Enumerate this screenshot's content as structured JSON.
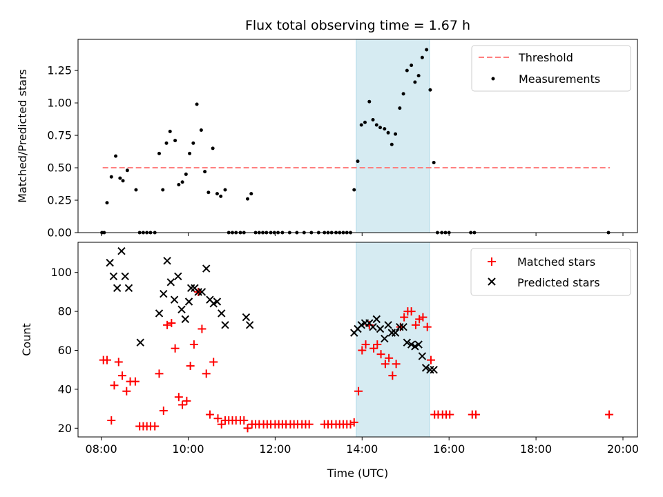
{
  "chart_data": [
    {
      "type": "scatter",
      "title": "Flux total observing time = 1.67 h",
      "xlabel": "",
      "ylabel": "Matched/Predicted stars",
      "xlim": [
        "07:28",
        "20:20"
      ],
      "ylim": [
        0,
        1.49
      ],
      "yticks": [
        0.0,
        0.25,
        0.5,
        0.75,
        1.0,
        1.25
      ],
      "ytick_labels": [
        "0.00",
        "0.25",
        "0.50",
        "0.75",
        "1.00",
        "1.25"
      ],
      "xticks": [
        "08:00",
        "10:00",
        "12:00",
        "14:00",
        "16:00",
        "18:00",
        "20:00"
      ],
      "show_xtick_labels": false,
      "grid": false,
      "legend_position": "top-right",
      "highlight_span": {
        "x0": "13:52",
        "x1": "15:33",
        "color": "#add8e6"
      },
      "threshold": {
        "name": "Threshold",
        "value": 0.5,
        "x0": "08:02",
        "x1": "19:42",
        "color": "#ff7f7f"
      },
      "series": [
        {
          "name": "Measurements",
          "color": "#000000",
          "marker": "dot",
          "points": [
            [
              "08:01",
              0
            ],
            [
              "08:04",
              0
            ],
            [
              "08:08",
              0.23
            ],
            [
              "08:14",
              0.43
            ],
            [
              "08:20",
              0.59
            ],
            [
              "08:26",
              0.42
            ],
            [
              "08:30",
              0.4
            ],
            [
              "08:36",
              0.48
            ],
            [
              "08:48",
              0.33
            ],
            [
              "08:53",
              0
            ],
            [
              "08:58",
              0
            ],
            [
              "09:03",
              0
            ],
            [
              "09:08",
              0
            ],
            [
              "09:14",
              0
            ],
            [
              "09:20",
              0.61
            ],
            [
              "09:25",
              0.33
            ],
            [
              "09:30",
              0.69
            ],
            [
              "09:35",
              0.78
            ],
            [
              "09:42",
              0.71
            ],
            [
              "09:47",
              0.37
            ],
            [
              "09:52",
              0.39
            ],
            [
              "09:57",
              0.45
            ],
            [
              "10:02",
              0.61
            ],
            [
              "10:07",
              0.69
            ],
            [
              "10:12",
              0.99
            ],
            [
              "10:18",
              0.79
            ],
            [
              "10:23",
              0.47
            ],
            [
              "10:28",
              0.31
            ],
            [
              "10:34",
              0.65
            ],
            [
              "10:40",
              0.3
            ],
            [
              "10:45",
              0.28
            ],
            [
              "10:51",
              0.33
            ],
            [
              "10:56",
              0
            ],
            [
              "11:01",
              0
            ],
            [
              "11:06",
              0
            ],
            [
              "11:12",
              0
            ],
            [
              "11:17",
              0
            ],
            [
              "11:22",
              0.26
            ],
            [
              "11:27",
              0.3
            ],
            [
              "11:33",
              0
            ],
            [
              "11:38",
              0
            ],
            [
              "11:43",
              0
            ],
            [
              "11:48",
              0
            ],
            [
              "11:54",
              0
            ],
            [
              "11:59",
              0
            ],
            [
              "12:04",
              0
            ],
            [
              "12:10",
              0
            ],
            [
              "12:20",
              0
            ],
            [
              "12:30",
              0
            ],
            [
              "12:40",
              0
            ],
            [
              "12:50",
              0
            ],
            [
              "13:00",
              0
            ],
            [
              "13:08",
              0
            ],
            [
              "13:13",
              0
            ],
            [
              "13:18",
              0
            ],
            [
              "13:24",
              0
            ],
            [
              "13:29",
              0
            ],
            [
              "13:34",
              0
            ],
            [
              "13:39",
              0
            ],
            [
              "13:44",
              0
            ],
            [
              "13:49",
              0.33
            ],
            [
              "13:54",
              0.55
            ],
            [
              "13:59",
              0.83
            ],
            [
              "14:04",
              0.85
            ],
            [
              "14:10",
              1.01
            ],
            [
              "14:15",
              0.87
            ],
            [
              "14:20",
              0.83
            ],
            [
              "14:25",
              0.81
            ],
            [
              "14:31",
              0.8
            ],
            [
              "14:36",
              0.77
            ],
            [
              "14:41",
              0.68
            ],
            [
              "14:46",
              0.76
            ],
            [
              "14:52",
              0.96
            ],
            [
              "14:57",
              1.07
            ],
            [
              "15:02",
              1.25
            ],
            [
              "15:08",
              1.29
            ],
            [
              "15:13",
              1.16
            ],
            [
              "15:18",
              1.21
            ],
            [
              "15:23",
              1.35
            ],
            [
              "15:29",
              1.41
            ],
            [
              "15:34",
              1.1
            ],
            [
              "15:39",
              0.54
            ],
            [
              "15:44",
              0
            ],
            [
              "15:50",
              0
            ],
            [
              "15:55",
              0
            ],
            [
              "16:00",
              0
            ],
            [
              "16:30",
              0
            ],
            [
              "16:35",
              0
            ],
            [
              "19:40",
              0
            ]
          ]
        }
      ]
    },
    {
      "type": "scatter",
      "title": "",
      "xlabel": "Time (UTC)",
      "ylabel": "Count",
      "xlim": [
        "07:28",
        "20:20"
      ],
      "ylim": [
        15.5,
        115.5
      ],
      "yticks": [
        20,
        40,
        60,
        80,
        100
      ],
      "ytick_labels": [
        "20",
        "40",
        "60",
        "80",
        "100"
      ],
      "xticks": [
        "08:00",
        "10:00",
        "12:00",
        "14:00",
        "16:00",
        "18:00",
        "20:00"
      ],
      "xtick_labels": [
        "08:00",
        "10:00",
        "12:00",
        "14:00",
        "16:00",
        "18:00",
        "20:00"
      ],
      "grid": false,
      "legend_position": "top-right",
      "highlight_span": {
        "x0": "13:52",
        "x1": "15:33",
        "color": "#add8e6"
      },
      "series": [
        {
          "name": "Matched stars",
          "color": "#ff0000",
          "marker": "plus",
          "points": [
            [
              "08:03",
              55
            ],
            [
              "08:08",
              55
            ],
            [
              "08:14",
              24
            ],
            [
              "08:18",
              42
            ],
            [
              "08:24",
              54
            ],
            [
              "08:29",
              47
            ],
            [
              "08:35",
              39
            ],
            [
              "08:40",
              44
            ],
            [
              "08:47",
              44
            ],
            [
              "08:53",
              21
            ],
            [
              "08:58",
              21
            ],
            [
              "09:03",
              21
            ],
            [
              "09:08",
              21
            ],
            [
              "09:14",
              21
            ],
            [
              "09:20",
              48
            ],
            [
              "09:26",
              29
            ],
            [
              "09:31",
              73
            ],
            [
              "09:37",
              74
            ],
            [
              "09:42",
              61
            ],
            [
              "09:47",
              36
            ],
            [
              "09:52",
              32
            ],
            [
              "09:58",
              34
            ],
            [
              "10:03",
              52
            ],
            [
              "10:08",
              63
            ],
            [
              "10:14",
              90
            ],
            [
              "10:19",
              71
            ],
            [
              "10:25",
              48
            ],
            [
              "10:30",
              27
            ],
            [
              "10:35",
              54
            ],
            [
              "10:41",
              25
            ],
            [
              "10:46",
              22
            ],
            [
              "10:51",
              24
            ],
            [
              "10:56",
              24
            ],
            [
              "11:01",
              24
            ],
            [
              "11:06",
              24
            ],
            [
              "11:12",
              24
            ],
            [
              "11:17",
              24
            ],
            [
              "11:22",
              20
            ],
            [
              "11:28",
              22
            ],
            [
              "11:33",
              22
            ],
            [
              "11:38",
              22
            ],
            [
              "11:44",
              22
            ],
            [
              "11:49",
              22
            ],
            [
              "11:54",
              22
            ],
            [
              "12:00",
              22
            ],
            [
              "12:05",
              22
            ],
            [
              "12:10",
              22
            ],
            [
              "12:15",
              22
            ],
            [
              "12:21",
              22
            ],
            [
              "12:26",
              22
            ],
            [
              "12:31",
              22
            ],
            [
              "12:37",
              22
            ],
            [
              "12:42",
              22
            ],
            [
              "12:47",
              22
            ],
            [
              "13:08",
              22
            ],
            [
              "13:13",
              22
            ],
            [
              "13:18",
              22
            ],
            [
              "13:24",
              22
            ],
            [
              "13:29",
              22
            ],
            [
              "13:34",
              22
            ],
            [
              "13:39",
              22
            ],
            [
              "13:44",
              22
            ],
            [
              "13:49",
              23
            ],
            [
              "13:55",
              39
            ],
            [
              "14:00",
              60
            ],
            [
              "14:05",
              63
            ],
            [
              "14:10",
              73
            ],
            [
              "14:16",
              61
            ],
            [
              "14:21",
              63
            ],
            [
              "14:26",
              58
            ],
            [
              "14:32",
              53
            ],
            [
              "14:37",
              56
            ],
            [
              "14:42",
              47
            ],
            [
              "14:47",
              53
            ],
            [
              "14:53",
              72
            ],
            [
              "14:58",
              77
            ],
            [
              "15:03",
              80
            ],
            [
              "15:08",
              80
            ],
            [
              "15:14",
              73
            ],
            [
              "15:19",
              76
            ],
            [
              "15:24",
              77
            ],
            [
              "15:30",
              72
            ],
            [
              "15:35",
              55
            ],
            [
              "15:40",
              27
            ],
            [
              "15:45",
              27
            ],
            [
              "15:51",
              27
            ],
            [
              "15:56",
              27
            ],
            [
              "16:01",
              27
            ],
            [
              "16:32",
              27
            ],
            [
              "16:37",
              27
            ],
            [
              "19:41",
              27
            ]
          ]
        },
        {
          "name": "Predicted stars",
          "color": "#000000",
          "marker": "cross",
          "points": [
            [
              "08:12",
              105
            ],
            [
              "08:17",
              98
            ],
            [
              "08:22",
              92
            ],
            [
              "08:28",
              111
            ],
            [
              "08:33",
              98
            ],
            [
              "08:38",
              92
            ],
            [
              "08:54",
              64
            ],
            [
              "09:20",
              79
            ],
            [
              "09:26",
              89
            ],
            [
              "09:31",
              106
            ],
            [
              "09:36",
              95
            ],
            [
              "09:41",
              86
            ],
            [
              "09:46",
              98
            ],
            [
              "09:51",
              81
            ],
            [
              "09:56",
              76
            ],
            [
              "10:01",
              85
            ],
            [
              "10:04",
              92
            ],
            [
              "10:09",
              92
            ],
            [
              "10:14",
              90
            ],
            [
              "10:19",
              90
            ],
            [
              "10:25",
              102
            ],
            [
              "10:30",
              86
            ],
            [
              "10:35",
              84
            ],
            [
              "10:40",
              85
            ],
            [
              "10:46",
              79
            ],
            [
              "10:51",
              73
            ],
            [
              "11:20",
              77
            ],
            [
              "11:25",
              73
            ],
            [
              "13:49",
              69
            ],
            [
              "13:54",
              71
            ],
            [
              "13:59",
              73
            ],
            [
              "14:04",
              74
            ],
            [
              "14:10",
              74
            ],
            [
              "14:15",
              72
            ],
            [
              "14:20",
              76
            ],
            [
              "14:25",
              71
            ],
            [
              "14:31",
              66
            ],
            [
              "14:36",
              73
            ],
            [
              "14:41",
              69
            ],
            [
              "14:46",
              69
            ],
            [
              "14:52",
              72
            ],
            [
              "14:57",
              72
            ],
            [
              "15:02",
              64
            ],
            [
              "15:08",
              63
            ],
            [
              "15:13",
              62
            ],
            [
              "15:18",
              63
            ],
            [
              "15:23",
              57
            ],
            [
              "15:28",
              51
            ],
            [
              "15:34",
              50
            ],
            [
              "15:39",
              50
            ]
          ]
        }
      ]
    }
  ]
}
